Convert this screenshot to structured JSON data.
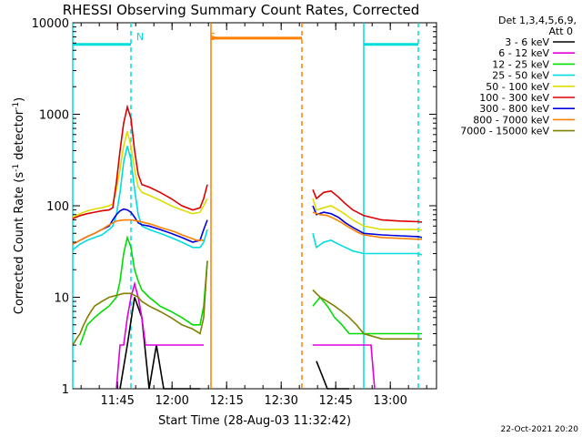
{
  "chart_data": {
    "type": "line",
    "title": "RHESSI Observing Summary Count Rates, Corrected",
    "xlabel": "Start Time (28-Aug-03 11:32:42)",
    "ylabel_main": "Corrected Count Rate (s",
    "ylabel_sup1": "-1",
    "ylabel_mid": " detector",
    "ylabel_sup2": "-1",
    "ylabel_end": ")",
    "yscale": "log",
    "ylim": [
      1,
      10000
    ],
    "y_ticks": [
      {
        "value": 1,
        "label": "1"
      },
      {
        "value": 10,
        "label": "10"
      },
      {
        "value": 100,
        "label": "100"
      },
      {
        "value": 1000,
        "label": "1000"
      },
      {
        "value": 10000,
        "label": "10000"
      }
    ],
    "xlim": [
      0,
      100
    ],
    "x_ticks": [
      {
        "value": 12.3,
        "label": "11:45"
      },
      {
        "value": 27.3,
        "label": "12:00"
      },
      {
        "value": 42.3,
        "label": "12:15"
      },
      {
        "value": 57.3,
        "label": "12:30"
      },
      {
        "value": 72.3,
        "label": "12:45"
      },
      {
        "value": 87.3,
        "label": "13:00"
      }
    ],
    "legend_header": [
      "Det 1,3,4,5,6,9,",
      "Att 0"
    ],
    "legend_position": "top-right outside",
    "series": [
      {
        "name": "3 - 6 keV",
        "color": "#000000",
        "points": [
          [
            13,
            1
          ],
          [
            15,
            3
          ],
          [
            17,
            10
          ],
          [
            19,
            6
          ],
          [
            21,
            1
          ],
          [
            23,
            3
          ],
          [
            25,
            1
          ],
          [
            27,
            1
          ],
          [
            35,
            1
          ],
          [
            null,
            null
          ],
          [
            67,
            2
          ],
          [
            70,
            1
          ],
          [
            73,
            1
          ],
          [
            76,
            1
          ],
          [
            null,
            null
          ]
        ]
      },
      {
        "name": "6 - 12 keV",
        "color": "#e000e0",
        "points": [
          [
            12,
            1
          ],
          [
            13,
            3
          ],
          [
            14,
            3
          ],
          [
            15,
            6
          ],
          [
            16,
            10
          ],
          [
            17,
            14
          ],
          [
            18,
            10
          ],
          [
            19,
            6
          ],
          [
            20,
            3
          ],
          [
            23,
            3
          ],
          [
            26,
            3
          ],
          [
            30,
            3
          ],
          [
            35,
            3
          ],
          [
            36,
            3
          ],
          [
            null,
            null
          ],
          [
            66,
            3
          ],
          [
            70,
            3
          ],
          [
            74,
            3
          ],
          [
            78,
            3
          ],
          [
            82,
            3
          ],
          [
            83,
            1
          ],
          [
            null,
            null
          ]
        ]
      },
      {
        "name": "12 - 25 keV",
        "color": "#00dd00",
        "points": [
          [
            2,
            3
          ],
          [
            4,
            5
          ],
          [
            6,
            6
          ],
          [
            8,
            7
          ],
          [
            10,
            8
          ],
          [
            12,
            10
          ],
          [
            13,
            15
          ],
          [
            14,
            30
          ],
          [
            15,
            45
          ],
          [
            16,
            35
          ],
          [
            17,
            20
          ],
          [
            18,
            15
          ],
          [
            19,
            12
          ],
          [
            21,
            10
          ],
          [
            24,
            8
          ],
          [
            27,
            7
          ],
          [
            30,
            6
          ],
          [
            33,
            5
          ],
          [
            35,
            5
          ],
          [
            36,
            8
          ],
          [
            37,
            25
          ],
          [
            null,
            null
          ],
          [
            66,
            8
          ],
          [
            68,
            10
          ],
          [
            70,
            8
          ],
          [
            72,
            6
          ],
          [
            74,
            5
          ],
          [
            76,
            4
          ],
          [
            80,
            4
          ],
          [
            85,
            4
          ],
          [
            90,
            4
          ],
          [
            95,
            4
          ],
          [
            96,
            4
          ],
          [
            null,
            null
          ]
        ]
      },
      {
        "name": "25 - 50 keV",
        "color": "#00dddd",
        "points": [
          [
            0,
            33
          ],
          [
            2,
            38
          ],
          [
            4,
            42
          ],
          [
            6,
            45
          ],
          [
            8,
            48
          ],
          [
            10,
            55
          ],
          [
            11,
            60
          ],
          [
            12,
            80
          ],
          [
            13,
            140
          ],
          [
            14,
            300
          ],
          [
            15,
            450
          ],
          [
            16,
            320
          ],
          [
            17,
            150
          ],
          [
            18,
            80
          ],
          [
            19,
            60
          ],
          [
            21,
            55
          ],
          [
            24,
            50
          ],
          [
            27,
            45
          ],
          [
            30,
            40
          ],
          [
            33,
            35
          ],
          [
            35,
            35
          ],
          [
            36,
            40
          ],
          [
            37,
            55
          ],
          [
            null,
            null
          ],
          [
            66,
            50
          ],
          [
            67,
            35
          ],
          [
            69,
            40
          ],
          [
            71,
            42
          ],
          [
            73,
            38
          ],
          [
            75,
            35
          ],
          [
            77,
            32
          ],
          [
            80,
            30
          ],
          [
            85,
            30
          ],
          [
            90,
            30
          ],
          [
            95,
            30
          ],
          [
            96,
            29
          ],
          [
            null,
            null
          ]
        ]
      },
      {
        "name": "50 - 100 keV",
        "color": "#dddd00",
        "points": [
          [
            0,
            75
          ],
          [
            2,
            82
          ],
          [
            4,
            88
          ],
          [
            6,
            92
          ],
          [
            8,
            95
          ],
          [
            10,
            100
          ],
          [
            11,
            105
          ],
          [
            12,
            150
          ],
          [
            13,
            250
          ],
          [
            14,
            450
          ],
          [
            15,
            650
          ],
          [
            16,
            450
          ],
          [
            17,
            250
          ],
          [
            18,
            160
          ],
          [
            19,
            140
          ],
          [
            21,
            130
          ],
          [
            24,
            115
          ],
          [
            27,
            100
          ],
          [
            30,
            90
          ],
          [
            33,
            82
          ],
          [
            35,
            85
          ],
          [
            36,
            100
          ],
          [
            37,
            120
          ],
          [
            null,
            null
          ],
          [
            66,
            120
          ],
          [
            67,
            90
          ],
          [
            69,
            95
          ],
          [
            71,
            100
          ],
          [
            73,
            90
          ],
          [
            75,
            80
          ],
          [
            77,
            70
          ],
          [
            80,
            60
          ],
          [
            85,
            55
          ],
          [
            90,
            55
          ],
          [
            95,
            55
          ],
          [
            96,
            54
          ],
          [
            null,
            null
          ]
        ]
      },
      {
        "name": "100 - 300 keV",
        "color": "#dd0000",
        "points": [
          [
            0,
            72
          ],
          [
            2,
            78
          ],
          [
            4,
            82
          ],
          [
            6,
            85
          ],
          [
            8,
            88
          ],
          [
            10,
            90
          ],
          [
            11,
            95
          ],
          [
            12,
            180
          ],
          [
            13,
            400
          ],
          [
            14,
            800
          ],
          [
            15,
            1200
          ],
          [
            16,
            900
          ],
          [
            17,
            400
          ],
          [
            18,
            220
          ],
          [
            19,
            170
          ],
          [
            21,
            160
          ],
          [
            24,
            140
          ],
          [
            27,
            120
          ],
          [
            30,
            100
          ],
          [
            33,
            90
          ],
          [
            35,
            95
          ],
          [
            36,
            120
          ],
          [
            37,
            170
          ],
          [
            null,
            null
          ],
          [
            66,
            150
          ],
          [
            67,
            120
          ],
          [
            69,
            140
          ],
          [
            71,
            145
          ],
          [
            73,
            125
          ],
          [
            75,
            105
          ],
          [
            77,
            90
          ],
          [
            80,
            78
          ],
          [
            85,
            70
          ],
          [
            90,
            68
          ],
          [
            95,
            67
          ],
          [
            96,
            66
          ],
          [
            null,
            null
          ]
        ]
      },
      {
        "name": "300 - 800 keV",
        "color": "#0000dd",
        "points": [
          [
            0,
            38
          ],
          [
            2,
            42
          ],
          [
            4,
            46
          ],
          [
            6,
            50
          ],
          [
            8,
            55
          ],
          [
            10,
            60
          ],
          [
            11,
            70
          ],
          [
            12,
            80
          ],
          [
            13,
            88
          ],
          [
            14,
            92
          ],
          [
            15,
            90
          ],
          [
            16,
            85
          ],
          [
            17,
            75
          ],
          [
            18,
            65
          ],
          [
            19,
            62
          ],
          [
            21,
            60
          ],
          [
            24,
            55
          ],
          [
            27,
            50
          ],
          [
            30,
            45
          ],
          [
            33,
            40
          ],
          [
            35,
            42
          ],
          [
            36,
            55
          ],
          [
            37,
            70
          ],
          [
            null,
            null
          ],
          [
            66,
            100
          ],
          [
            67,
            80
          ],
          [
            69,
            85
          ],
          [
            71,
            82
          ],
          [
            73,
            75
          ],
          [
            75,
            65
          ],
          [
            77,
            58
          ],
          [
            80,
            50
          ],
          [
            85,
            48
          ],
          [
            90,
            47
          ],
          [
            95,
            46
          ],
          [
            96,
            45
          ],
          [
            null,
            null
          ]
        ]
      },
      {
        "name": "800 - 7000 keV",
        "color": "#ff8000",
        "points": [
          [
            0,
            38
          ],
          [
            2,
            42
          ],
          [
            4,
            46
          ],
          [
            6,
            50
          ],
          [
            8,
            55
          ],
          [
            10,
            62
          ],
          [
            12,
            68
          ],
          [
            14,
            70
          ],
          [
            16,
            70
          ],
          [
            18,
            68
          ],
          [
            20,
            65
          ],
          [
            22,
            62
          ],
          [
            24,
            58
          ],
          [
            26,
            55
          ],
          [
            28,
            52
          ],
          [
            30,
            48
          ],
          [
            32,
            45
          ],
          [
            34,
            42
          ],
          [
            36,
            42
          ],
          [
            null,
            null
          ],
          [
            66,
            85
          ],
          [
            68,
            80
          ],
          [
            70,
            78
          ],
          [
            72,
            72
          ],
          [
            74,
            65
          ],
          [
            76,
            58
          ],
          [
            78,
            52
          ],
          [
            80,
            48
          ],
          [
            85,
            45
          ],
          [
            90,
            44
          ],
          [
            95,
            43
          ],
          [
            96,
            43
          ],
          [
            null,
            null
          ]
        ]
      },
      {
        "name": "7000 - 15000 keV",
        "color": "#808000",
        "points": [
          [
            0,
            3
          ],
          [
            1,
            3.5
          ],
          [
            2,
            4
          ],
          [
            3,
            5
          ],
          [
            4,
            6
          ],
          [
            5,
            7
          ],
          [
            6,
            8
          ],
          [
            7,
            8.5
          ],
          [
            8,
            9
          ],
          [
            10,
            10
          ],
          [
            12,
            10.5
          ],
          [
            14,
            11
          ],
          [
            16,
            11
          ],
          [
            18,
            10
          ],
          [
            19,
            9
          ],
          [
            21,
            8
          ],
          [
            24,
            7
          ],
          [
            27,
            6
          ],
          [
            30,
            5
          ],
          [
            33,
            4.5
          ],
          [
            35,
            4
          ],
          [
            36,
            6
          ],
          [
            37,
            25
          ],
          [
            null,
            null
          ],
          [
            66,
            12
          ],
          [
            68,
            10
          ],
          [
            70,
            9
          ],
          [
            72,
            8
          ],
          [
            74,
            7
          ],
          [
            76,
            6
          ],
          [
            78,
            5
          ],
          [
            80,
            4
          ],
          [
            85,
            3.5
          ],
          [
            90,
            3.5
          ],
          [
            95,
            3.5
          ],
          [
            96,
            3.5
          ],
          [
            null,
            null
          ]
        ]
      }
    ],
    "annotations": [
      {
        "label": "N",
        "x": 17,
        "color": "#00dddd"
      },
      {
        "label": "S",
        "x": 37,
        "color": "#ff8000"
      }
    ],
    "vlines": [
      {
        "x": 0,
        "color": "#00dddd",
        "style": "solid"
      },
      {
        "x": 16,
        "color": "#00dddd",
        "style": "dashed"
      },
      {
        "x": 38,
        "color": "#ff8000",
        "style": "solid"
      },
      {
        "x": 63,
        "color": "#ff8000",
        "style": "dashed"
      },
      {
        "x": 80,
        "color": "#00dddd",
        "style": "solid"
      },
      {
        "x": 95,
        "color": "#00dddd",
        "style": "dashed"
      }
    ],
    "hsegments": [
      {
        "x0": 0,
        "x1": 16,
        "y": 5800,
        "color": "#00dddd"
      },
      {
        "x0": 38,
        "x1": 63,
        "y": 6800,
        "color": "#ff8000"
      },
      {
        "x0": 80,
        "x1": 95,
        "y": 5800,
        "color": "#00dddd"
      }
    ],
    "footer_date": "22-Oct-2021 20:20"
  }
}
